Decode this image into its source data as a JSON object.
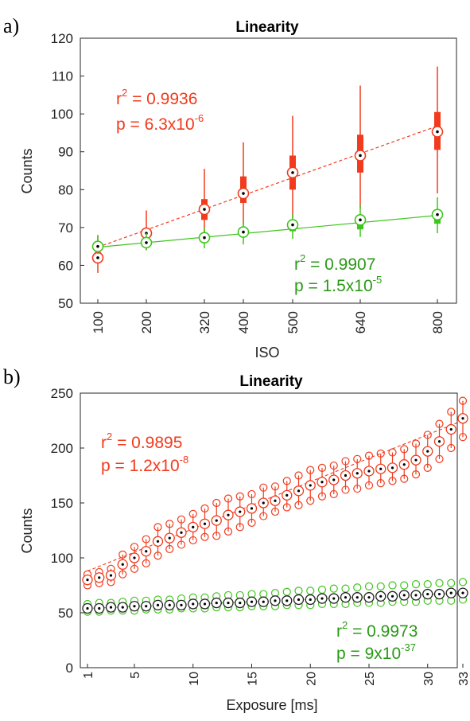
{
  "colors": {
    "red": "#f23a1c",
    "green": "#3fc51c",
    "green_text": "#2a9a16",
    "axis": "#262626"
  },
  "chart_data": [
    {
      "panel_label": "a)",
      "type": "boxplot",
      "title": "Linearity",
      "xlabel": "ISO",
      "ylabel": "Counts",
      "x_ticks": [
        "100",
        "200",
        "320",
        "400",
        "500",
        "640",
        "800"
      ],
      "y_ticks": [
        "50",
        "60",
        "70",
        "80",
        "90",
        "100",
        "110",
        "120"
      ],
      "ylim": [
        50,
        120
      ],
      "series": [
        {
          "color": "red",
          "points": [
            {
              "x": 100,
              "median": 62,
              "q1": 61.5,
              "q3": 63.5,
              "low": 58,
              "high": 68
            },
            {
              "x": 200,
              "median": 68.5,
              "q1": 67.5,
              "q3": 69.5,
              "low": 64,
              "high": 74.5
            },
            {
              "x": 320,
              "median": 74.8,
              "q1": 72,
              "q3": 77.5,
              "low": 68,
              "high": 85.5
            },
            {
              "x": 400,
              "median": 79,
              "q1": 76.5,
              "q3": 83.5,
              "low": 70.5,
              "high": 92.5
            },
            {
              "x": 500,
              "median": 84.5,
              "q1": 80,
              "q3": 89,
              "low": 72.5,
              "high": 99.5
            },
            {
              "x": 640,
              "median": 89,
              "q1": 84.5,
              "q3": 94.5,
              "low": 75,
              "high": 107.5
            },
            {
              "x": 800,
              "median": 95.3,
              "q1": 90.5,
              "q3": 100.5,
              "low": 79,
              "high": 112.5
            }
          ],
          "fit": {
            "x": [
              100,
              800
            ],
            "y": [
              64.8,
              96.8
            ]
          },
          "annotation": {
            "r2_label": "r",
            "r2_value": " = 0.9936",
            "p_label": "p = 6.3x10",
            "p_exp": "-6"
          }
        },
        {
          "color": "green",
          "points": [
            {
              "x": 100,
              "median": 65,
              "q1": 64.5,
              "q3": 65.8,
              "low": 63,
              "high": 68
            },
            {
              "x": 200,
              "median": 66,
              "q1": 65.3,
              "q3": 66.7,
              "low": 64,
              "high": 68.5
            },
            {
              "x": 320,
              "median": 67.3,
              "q1": 66.5,
              "q3": 68,
              "low": 64.5,
              "high": 70
            },
            {
              "x": 400,
              "median": 68.8,
              "q1": 67.5,
              "q3": 69.5,
              "low": 65.5,
              "high": 71.5
            },
            {
              "x": 500,
              "median": 70.7,
              "q1": 69,
              "q3": 71.5,
              "low": 67,
              "high": 73.5
            },
            {
              "x": 640,
              "median": 72,
              "q1": 69.5,
              "q3": 72.5,
              "low": 67.5,
              "high": 76
            },
            {
              "x": 800,
              "median": 73.4,
              "q1": 71,
              "q3": 73.5,
              "low": 68.5,
              "high": 78
            }
          ],
          "fit": {
            "x": [
              100,
              800
            ],
            "y": [
              64.8,
              73.2
            ]
          },
          "annotation": {
            "r2_label": "r",
            "r2_value": " = 0.9907",
            "p_label": "p = 1.5x10",
            "p_exp": "-5"
          }
        }
      ]
    },
    {
      "panel_label": "b)",
      "type": "scatter",
      "title": "Linearity",
      "xlabel": "Exposure [ms]",
      "ylabel": "Counts",
      "x_ticks": [
        "1",
        "5",
        "10",
        "15",
        "20",
        "25",
        "30",
        "33"
      ],
      "y_ticks": [
        "0",
        "50",
        "100",
        "150",
        "200",
        "250"
      ],
      "xlim": [
        1,
        33
      ],
      "ylim": [
        0,
        250
      ],
      "series": [
        {
          "color": "red",
          "x": [
            1,
            2,
            3,
            4,
            5,
            6,
            7,
            8,
            9,
            10,
            11,
            12,
            13,
            14,
            15,
            16,
            17,
            18,
            19,
            20,
            21,
            22,
            23,
            24,
            25,
            26,
            27,
            28,
            29,
            30,
            31,
            32,
            33
          ],
          "median": [
            80,
            82,
            84,
            94,
            100,
            106,
            115,
            118,
            123,
            128,
            131,
            134,
            139,
            142,
            145,
            150,
            152,
            157,
            161,
            166,
            169,
            171,
            175,
            177,
            179,
            181,
            182,
            185,
            189,
            197,
            206,
            217,
            227
          ],
          "low": [
            75,
            77,
            78,
            85,
            90,
            95,
            102,
            108,
            112,
            116,
            119,
            120,
            124,
            128,
            132,
            138,
            142,
            146,
            148,
            152,
            156,
            158,
            162,
            163,
            166,
            168,
            170,
            172,
            176,
            182,
            190,
            200,
            210
          ],
          "high": [
            85,
            87,
            90,
            103,
            110,
            117,
            128,
            131,
            135,
            140,
            145,
            150,
            154,
            156,
            158,
            164,
            165,
            170,
            175,
            180,
            182,
            184,
            188,
            190,
            193,
            195,
            196,
            199,
            204,
            212,
            222,
            233,
            243
          ],
          "fit": {
            "x": [
              1,
              33
            ],
            "y": [
              88,
              225
            ]
          },
          "annotation": {
            "r2_label": "r",
            "r2_value": " = 0.9895",
            "p_label": "p = 1.2x10",
            "p_exp": "-8"
          }
        },
        {
          "color": "green",
          "x": [
            1,
            2,
            3,
            4,
            5,
            6,
            7,
            8,
            9,
            10,
            11,
            12,
            13,
            14,
            15,
            16,
            17,
            18,
            19,
            20,
            21,
            22,
            23,
            24,
            25,
            26,
            27,
            28,
            29,
            30,
            31,
            32,
            33
          ],
          "median": [
            54,
            54,
            55,
            55,
            56,
            56,
            57,
            57,
            57,
            58,
            58,
            59,
            59,
            59,
            60,
            60,
            61,
            61,
            62,
            62,
            63,
            63,
            64,
            64,
            64,
            65,
            65,
            66,
            66,
            67,
            67,
            68,
            68
          ],
          "low": [
            51,
            51,
            52,
            52,
            52,
            53,
            53,
            53,
            54,
            54,
            54,
            55,
            55,
            55,
            56,
            56,
            56,
            57,
            57,
            57,
            58,
            58,
            58,
            59,
            59,
            59,
            60,
            60,
            60,
            61,
            61,
            61,
            62
          ],
          "high": [
            58,
            59,
            59,
            60,
            61,
            61,
            62,
            62,
            63,
            64,
            64,
            65,
            66,
            66,
            67,
            67,
            68,
            69,
            70,
            70,
            71,
            72,
            72,
            73,
            74,
            74,
            75,
            75,
            76,
            76,
            77,
            77,
            78
          ],
          "fit": {
            "x": [
              1,
              33
            ],
            "y": [
              54,
              68
            ]
          },
          "annotation": {
            "r2_label": "r",
            "r2_value": " = 0.9973",
            "p_label": "p = 9x10",
            "p_exp": "-37"
          }
        }
      ]
    }
  ]
}
